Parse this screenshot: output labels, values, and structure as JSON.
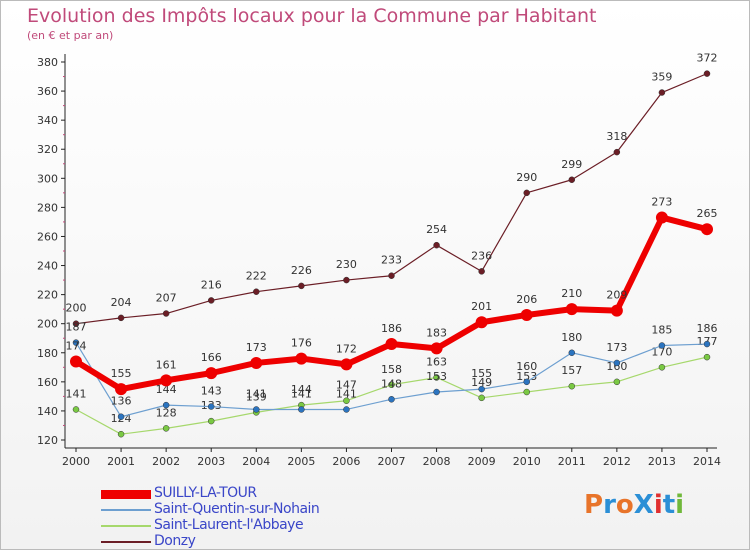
{
  "title": "Evolution des Impôts locaux pour la Commune par Habitant",
  "subtitle": "(en € et par an)",
  "logo": {
    "text": "ProXiti",
    "colors": [
      "#e8742a",
      "#2b8fd6",
      "#e8742a",
      "#2b8fd6",
      "#e03030",
      "#2b8fd6",
      "#70b83a"
    ]
  },
  "chart_data": {
    "type": "line",
    "x": [
      2000,
      2001,
      2002,
      2003,
      2004,
      2005,
      2006,
      2007,
      2008,
      2009,
      2010,
      2011,
      2012,
      2013,
      2014
    ],
    "ylim": [
      120,
      380
    ],
    "yticks": [
      120,
      140,
      160,
      180,
      200,
      220,
      240,
      260,
      280,
      300,
      320,
      340,
      360,
      380
    ],
    "grid": false,
    "legend": "bottom-left",
    "series": [
      {
        "name": "Donzy",
        "color": "#6b1e26",
        "marker": "#6b1e26",
        "width": 1.2,
        "labelOffset": -12,
        "values": [
          200,
          204,
          207,
          216,
          222,
          226,
          230,
          233,
          254,
          236,
          290,
          299,
          318,
          359,
          372
        ]
      },
      {
        "name": "Saint-Laurent-l'Abbaye",
        "color": "#a6d86c",
        "marker": "#7ac943",
        "width": 1.2,
        "labelOffset": -12,
        "values": [
          141,
          124,
          128,
          133,
          139,
          144,
          147,
          158,
          163,
          149,
          153,
          157,
          160,
          170,
          177
        ]
      },
      {
        "name": "Saint-Quentin-sur-Nohain",
        "color": "#6d9fd0",
        "marker": "#2b74c0",
        "width": 1.2,
        "labelOffset": -12,
        "values": [
          187,
          136,
          144,
          143,
          141,
          141,
          141,
          148,
          153,
          155,
          160,
          180,
          173,
          185,
          186
        ]
      },
      {
        "name": "SUILLY-LA-TOUR",
        "color": "#ee0000",
        "marker": "#ee0000",
        "width": 6,
        "labelOffset": -12,
        "values": [
          174,
          155,
          161,
          166,
          173,
          176,
          172,
          186,
          183,
          201,
          206,
          210,
          209,
          273,
          265
        ]
      }
    ],
    "legend_order": [
      "SUILLY-LA-TOUR",
      "Saint-Quentin-sur-Nohain",
      "Saint-Laurent-l'Abbaye",
      "Donzy"
    ]
  }
}
